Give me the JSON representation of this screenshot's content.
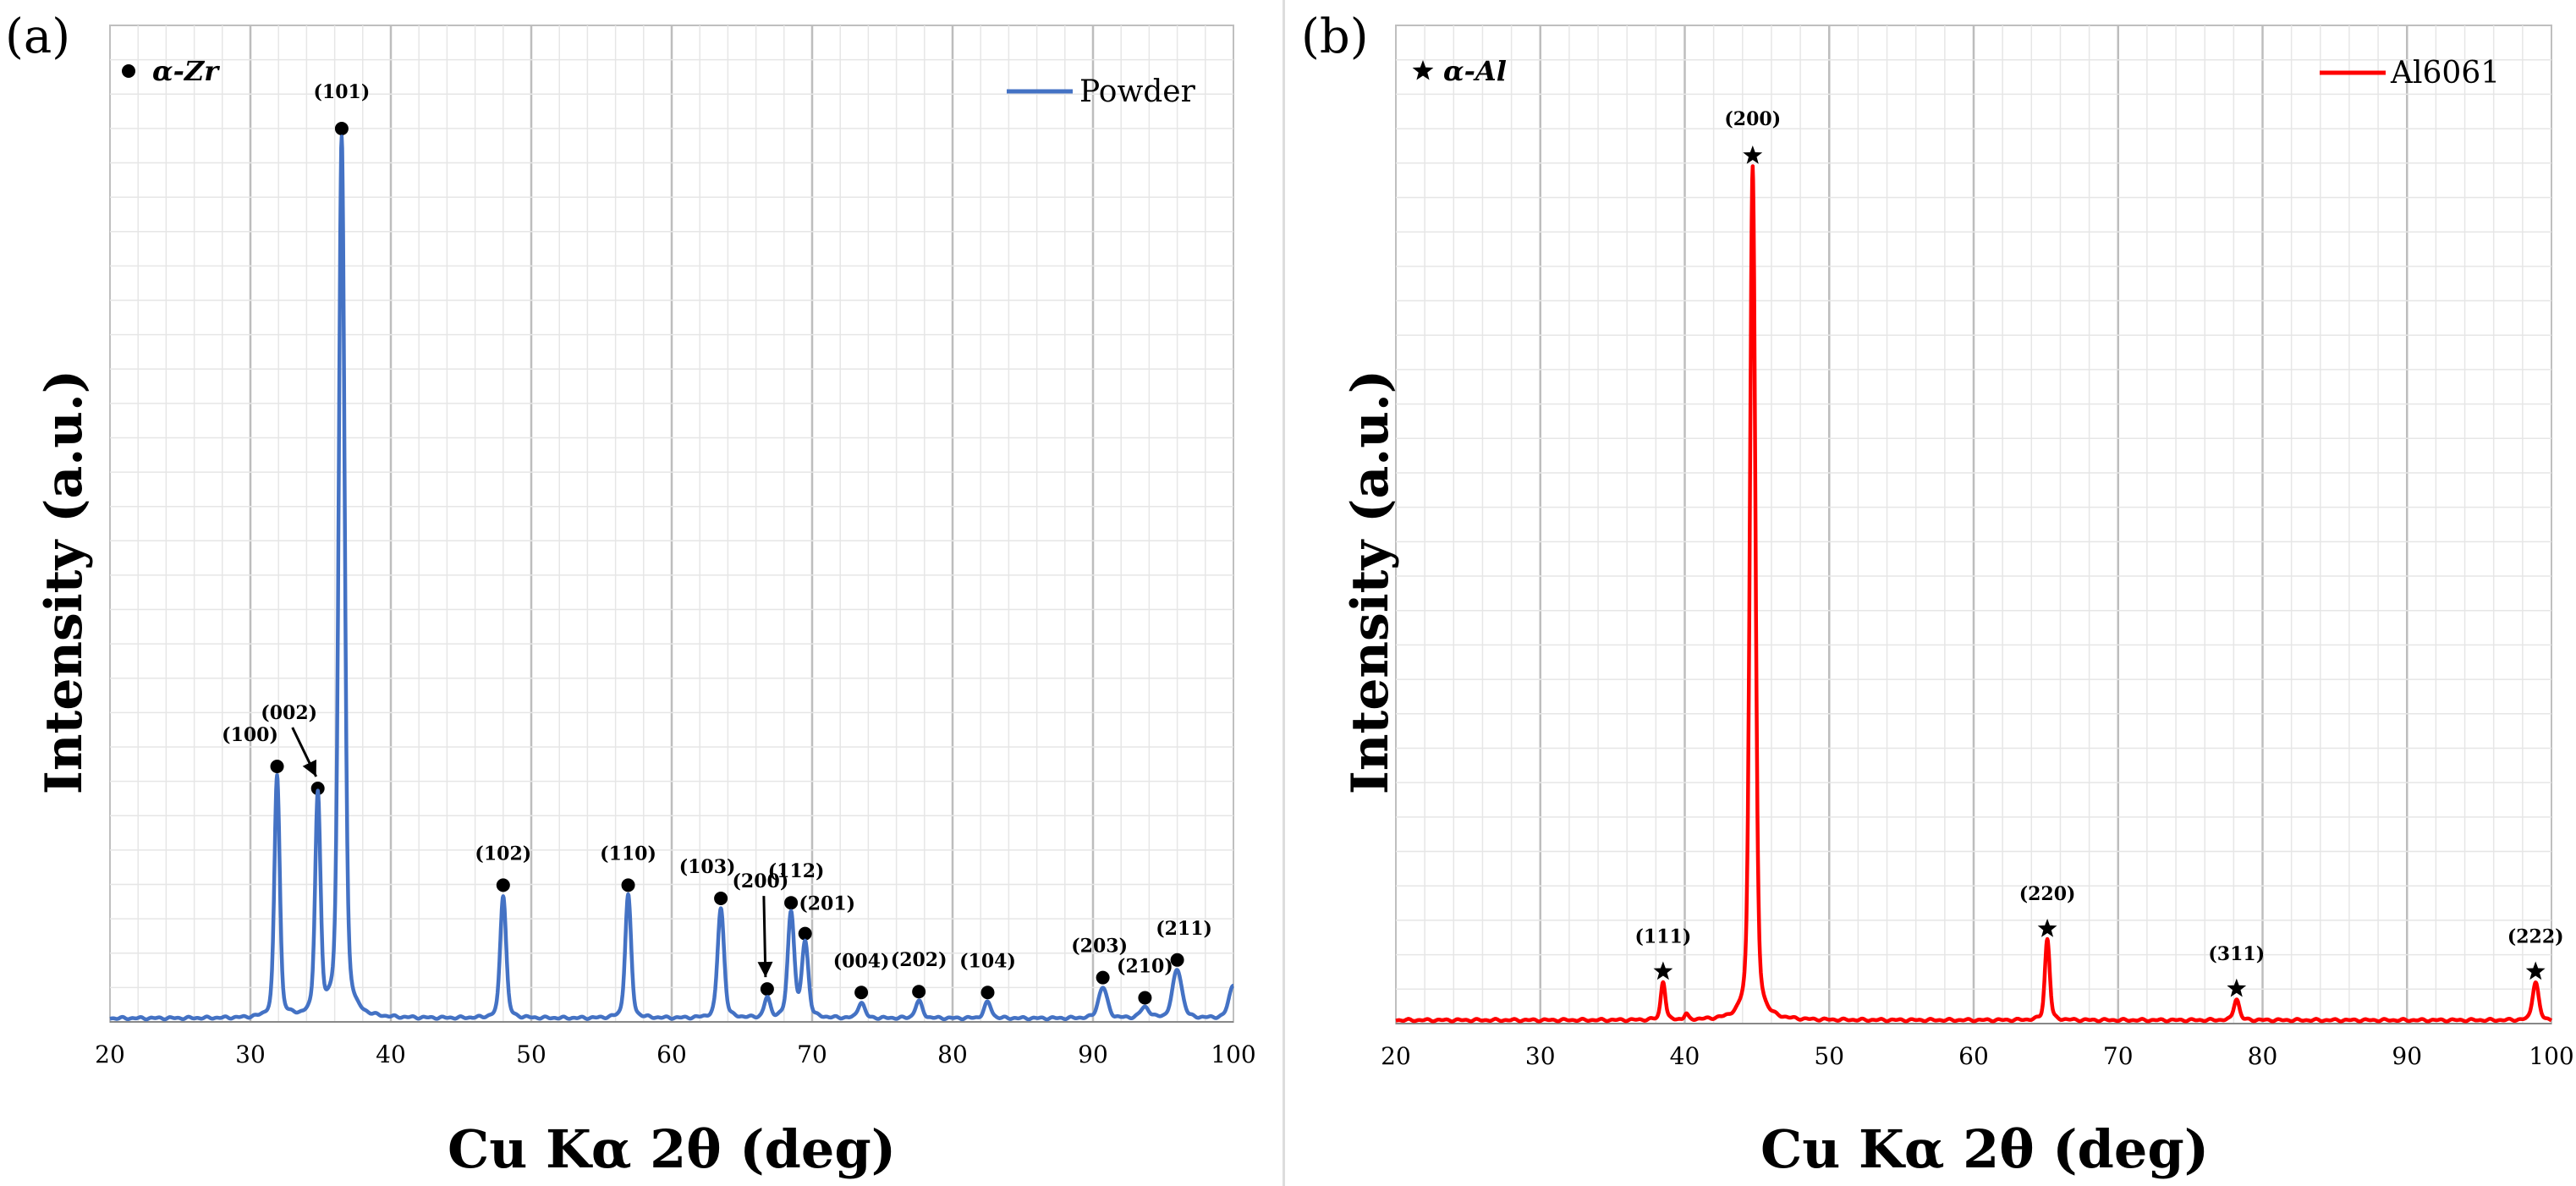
{
  "chart_data": [
    {
      "type": "line",
      "panel": "(a)",
      "title": "",
      "xlabel": "Cu Kα 2θ (deg)",
      "ylabel": "Intensity (a.u.)",
      "xlim": [
        20,
        100
      ],
      "ylim": [
        0,
        100
      ],
      "xticks": [
        "20",
        "30",
        "40",
        "50",
        "60",
        "70",
        "80",
        "90",
        "100"
      ],
      "color": "#4472C4",
      "legend_position": "top-right",
      "phase_label": "α-Zr",
      "phase_marker": "circle",
      "series": [
        {
          "name": "Powder",
          "peaks": [
            {
              "x": 31.9,
              "y": 27.5,
              "w": 0.18
            },
            {
              "x": 34.8,
              "y": 25.0,
              "w": 0.18
            },
            {
              "x": 36.5,
              "y": 100,
              "w": 0.2
            },
            {
              "x": 48.0,
              "y": 14.0,
              "w": 0.2
            },
            {
              "x": 56.9,
              "y": 14.0,
              "w": 0.2
            },
            {
              "x": 63.5,
              "y": 12.5,
              "w": 0.22
            },
            {
              "x": 66.8,
              "y": 2.2,
              "w": 0.2
            },
            {
              "x": 68.5,
              "y": 12.0,
              "w": 0.22
            },
            {
              "x": 69.5,
              "y": 8.5,
              "w": 0.22
            },
            {
              "x": 73.5,
              "y": 1.8,
              "w": 0.22
            },
            {
              "x": 77.6,
              "y": 1.9,
              "w": 0.24
            },
            {
              "x": 82.5,
              "y": 1.8,
              "w": 0.24
            },
            {
              "x": 90.7,
              "y": 3.5,
              "w": 0.3
            },
            {
              "x": 93.7,
              "y": 1.2,
              "w": 0.3
            },
            {
              "x": 96.0,
              "y": 5.5,
              "w": 0.32
            },
            {
              "x": 100.0,
              "y": 3.8,
              "w": 0.3
            }
          ]
        }
      ],
      "annotations": [
        {
          "label": "(100)",
          "x": 31.9,
          "y": 27.5
        },
        {
          "label": "(002)",
          "x": 34.8,
          "y": 25.0,
          "arrow": true
        },
        {
          "label": "(101)",
          "x": 36.5,
          "y": 100
        },
        {
          "label": "(102)",
          "x": 48.0,
          "y": 14.0
        },
        {
          "label": "(110)",
          "x": 56.9,
          "y": 14.0
        },
        {
          "label": "(103)",
          "x": 63.5,
          "y": 12.5
        },
        {
          "label": "(200)",
          "x": 66.8,
          "y": 2.2,
          "arrow": true
        },
        {
          "label": "(112)",
          "x": 68.5,
          "y": 12.0
        },
        {
          "label": "(201)",
          "x": 69.5,
          "y": 8.5
        },
        {
          "label": "(004)",
          "x": 73.5,
          "y": 1.8
        },
        {
          "label": "(202)",
          "x": 77.6,
          "y": 1.9
        },
        {
          "label": "(104)",
          "x": 82.5,
          "y": 1.8
        },
        {
          "label": "(203)",
          "x": 90.7,
          "y": 3.5
        },
        {
          "label": "(210)",
          "x": 93.7,
          "y": 1.2
        },
        {
          "label": "(211)",
          "x": 96.0,
          "y": 5.5
        }
      ]
    },
    {
      "type": "line",
      "panel": "(b)",
      "title": "",
      "xlabel": "Cu Kα 2θ (deg)",
      "ylabel": "Intensity (a.u.)",
      "xlim": [
        20,
        100
      ],
      "ylim": [
        0,
        100
      ],
      "xticks": [
        "20",
        "30",
        "40",
        "50",
        "60",
        "70",
        "80",
        "90",
        "100"
      ],
      "color": "#FF0000",
      "legend_position": "top-right",
      "phase_label": "α-Al",
      "phase_marker": "star",
      "series": [
        {
          "name": "Al6061",
          "peaks": [
            {
              "x": 38.5,
              "y": 4.5,
              "w": 0.15
            },
            {
              "x": 40.1,
              "y": 0.6,
              "w": 0.12
            },
            {
              "x": 44.7,
              "y": 100,
              "w": 0.18
            },
            {
              "x": 65.1,
              "y": 9.5,
              "w": 0.16
            },
            {
              "x": 78.2,
              "y": 2.5,
              "w": 0.18
            },
            {
              "x": 98.9,
              "y": 4.5,
              "w": 0.2
            }
          ]
        }
      ],
      "annotations": [
        {
          "label": "(111)",
          "x": 38.5,
          "y": 4.5
        },
        {
          "label": "(200)",
          "x": 44.7,
          "y": 100
        },
        {
          "label": "(220)",
          "x": 65.1,
          "y": 9.5
        },
        {
          "label": "(311)",
          "x": 78.2,
          "y": 2.5
        },
        {
          "label": "(222)",
          "x": 98.9,
          "y": 4.5
        }
      ]
    }
  ]
}
